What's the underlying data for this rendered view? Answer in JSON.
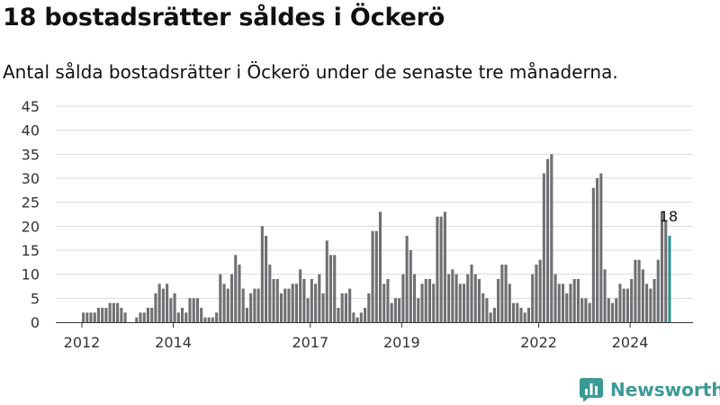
{
  "header": {
    "title": "18 bostadsrätter såldes i Öckerö",
    "subtitle": "Antal sålda bostadsrätter i Öckerö under de senaste tre månaderna."
  },
  "brand": {
    "name": "Newsworthy",
    "icon": "bar-chart-logo-icon",
    "color": "#3b9a96"
  },
  "colors": {
    "bar": "#706f73",
    "highlight": "#2a9690",
    "grid": "#d9d9d9",
    "axis": "#333333"
  },
  "chart_data": {
    "type": "bar",
    "title": "18 bostadsrätter såldes i Öckerö",
    "subtitle": "Antal sålda bostadsrätter i Öckerö under de senaste tre månaderna.",
    "xlabel": "",
    "ylabel": "",
    "ylim": [
      0,
      45
    ],
    "yticks": [
      0,
      5,
      10,
      15,
      20,
      25,
      30,
      35,
      40,
      45
    ],
    "xticks": [
      "2012",
      "2014",
      "2017",
      "2019",
      "2022",
      "2024"
    ],
    "grid": true,
    "legend": "none",
    "x_start": "2012-01",
    "x_end": "2024-10",
    "frequency": "monthly",
    "values": [
      2,
      2,
      2,
      2,
      3,
      3,
      3,
      4,
      4,
      4,
      3,
      2,
      0,
      0,
      1,
      2,
      2,
      3,
      3,
      6,
      8,
      7,
      8,
      5,
      6,
      2,
      3,
      2,
      5,
      5,
      5,
      3,
      1,
      1,
      1,
      2,
      10,
      8,
      7,
      10,
      14,
      12,
      7,
      3,
      6,
      7,
      7,
      20,
      18,
      12,
      9,
      9,
      6,
      7,
      7,
      8,
      8,
      11,
      9,
      5,
      9,
      8,
      10,
      6,
      17,
      14,
      14,
      3,
      6,
      6,
      7,
      2,
      1,
      2,
      3,
      6,
      19,
      19,
      23,
      8,
      9,
      4,
      5,
      5,
      10,
      18,
      15,
      10,
      5,
      8,
      9,
      9,
      8,
      22,
      22,
      23,
      10,
      11,
      10,
      8,
      8,
      10,
      12,
      10,
      9,
      6,
      5,
      2,
      3,
      9,
      12,
      12,
      8,
      4,
      4,
      3,
      2,
      3,
      10,
      12,
      13,
      31,
      34,
      35,
      10,
      8,
      8,
      6,
      8,
      9,
      9,
      5,
      5,
      4,
      28,
      30,
      31,
      11,
      5,
      4,
      5,
      8,
      7,
      7,
      9,
      13,
      13,
      11,
      8,
      7,
      9,
      13,
      23,
      21,
      18
    ],
    "highlight_label": "18"
  }
}
